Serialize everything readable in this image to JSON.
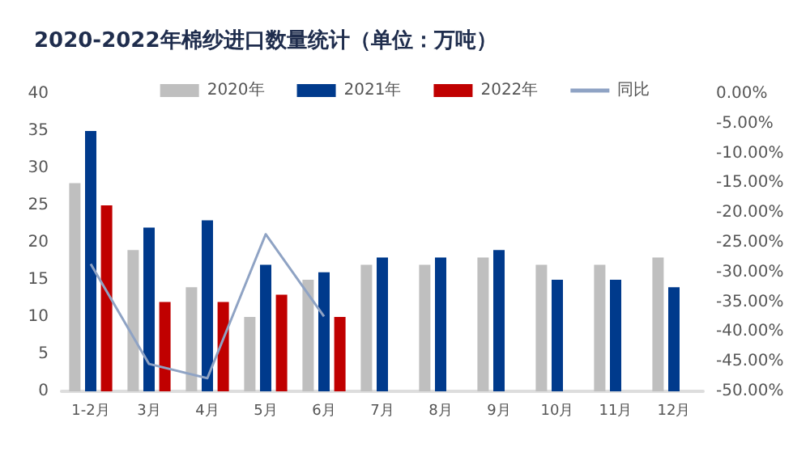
{
  "chart_data": {
    "type": "bar",
    "title": "2020-2022年棉纱进口数量统计（单位：万吨）",
    "categories": [
      "1-2月",
      "3月",
      "4月",
      "5月",
      "6月",
      "7月",
      "8月",
      "9月",
      "10月",
      "11月",
      "12月"
    ],
    "series": [
      {
        "name": "2020年",
        "color": "#bfbfbf",
        "values": [
          28,
          19,
          14,
          10,
          15,
          17,
          17,
          18,
          17,
          17,
          18
        ]
      },
      {
        "name": "2021年",
        "color": "#003a8c",
        "values": [
          35,
          22,
          23,
          17,
          16,
          18,
          18,
          19,
          15,
          15,
          14
        ]
      },
      {
        "name": "2022年",
        "color": "#c00000",
        "values": [
          25,
          12,
          12,
          13,
          10,
          null,
          null,
          null,
          null,
          null,
          null
        ]
      },
      {
        "name": "同比",
        "type": "line",
        "axis": "y2",
        "color": "#8fa3c4",
        "values": [
          -28.6,
          -45.4,
          -47.8,
          -23.6,
          -37.4,
          null,
          null,
          null,
          null,
          null,
          null
        ]
      }
    ],
    "ylim": [
      0,
      40
    ],
    "yticks": [
      0,
      5,
      10,
      15,
      20,
      25,
      30,
      35,
      40
    ],
    "y2lim": [
      -50,
      0
    ],
    "y2ticks": [
      {
        "value": -50,
        "label": "-50.00%"
      },
      {
        "value": -45,
        "label": "-45.00%"
      },
      {
        "value": -40,
        "label": "-40.00%"
      },
      {
        "value": -35,
        "label": "-35.00%"
      },
      {
        "value": -30,
        "label": "-30.00%"
      },
      {
        "value": -25,
        "label": "-25.00%"
      },
      {
        "value": -20,
        "label": "-20.00%"
      },
      {
        "value": -15,
        "label": "-15.00%"
      },
      {
        "value": -10,
        "label": "-10.00%"
      },
      {
        "value": -5,
        "label": "-5.00%"
      },
      {
        "value": 0,
        "label": "0.00%"
      }
    ],
    "legend": "top",
    "grid": false,
    "marker": "none"
  }
}
